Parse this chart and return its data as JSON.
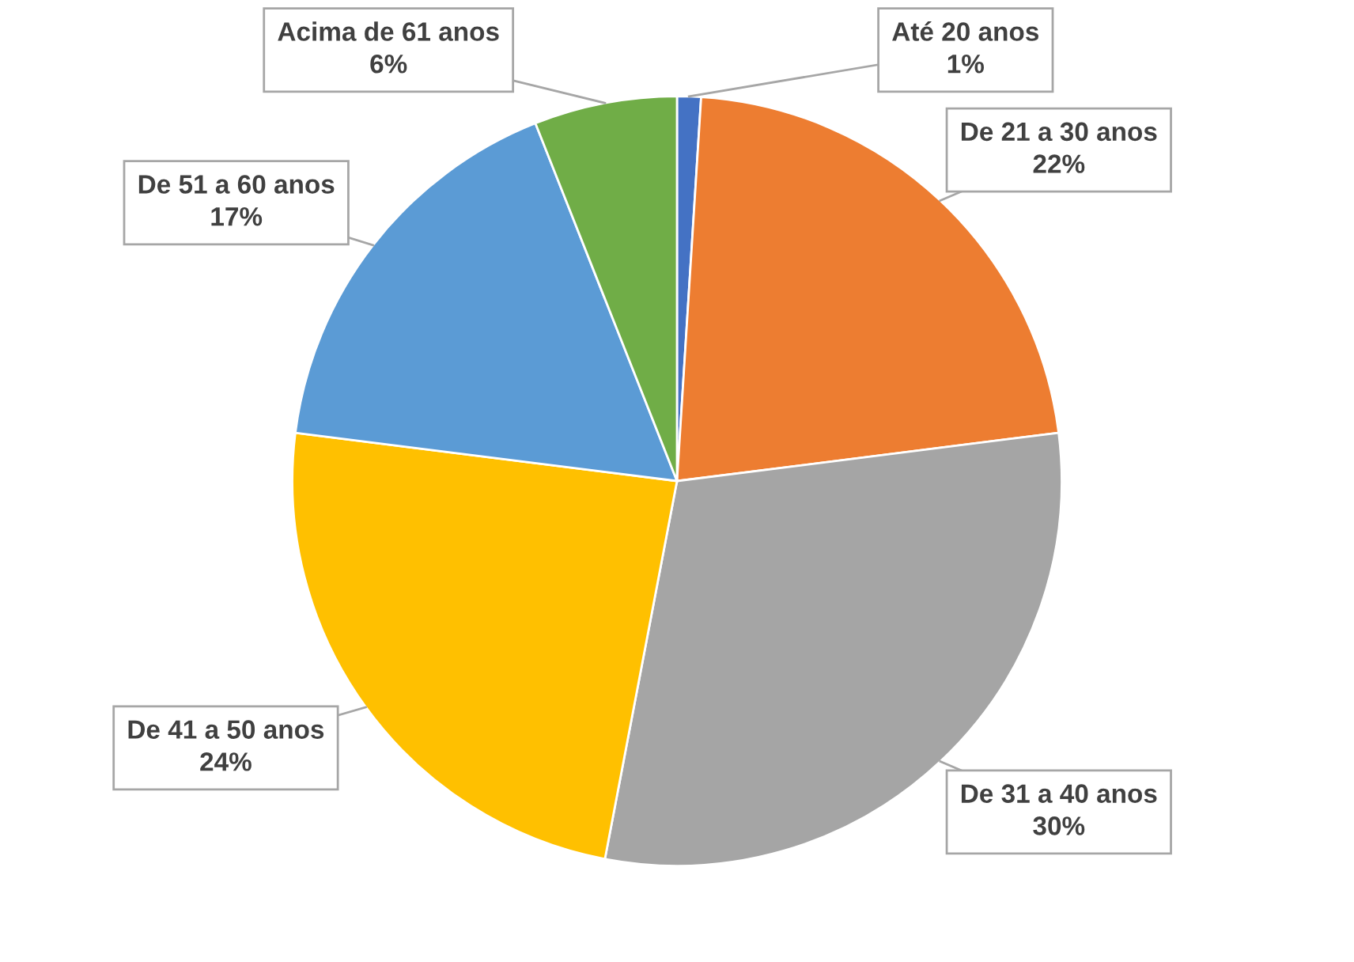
{
  "chart_data": {
    "type": "pie",
    "categories": [
      "Até 20 anos",
      "De 21 a 30 anos",
      "De 31 a 40 anos",
      "De 41 a 50 anos",
      "De 51 a 60 anos",
      "Acima de 61 anos"
    ],
    "values": [
      1,
      22,
      30,
      24,
      17,
      6
    ],
    "value_labels": [
      "1%",
      "22%",
      "30%",
      "24%",
      "17%",
      "6%"
    ],
    "colors": [
      "#4472c4",
      "#ed7d31",
      "#a5a5a5",
      "#ffc000",
      "#5b9bd5",
      "#70ad47"
    ],
    "legend": false
  }
}
